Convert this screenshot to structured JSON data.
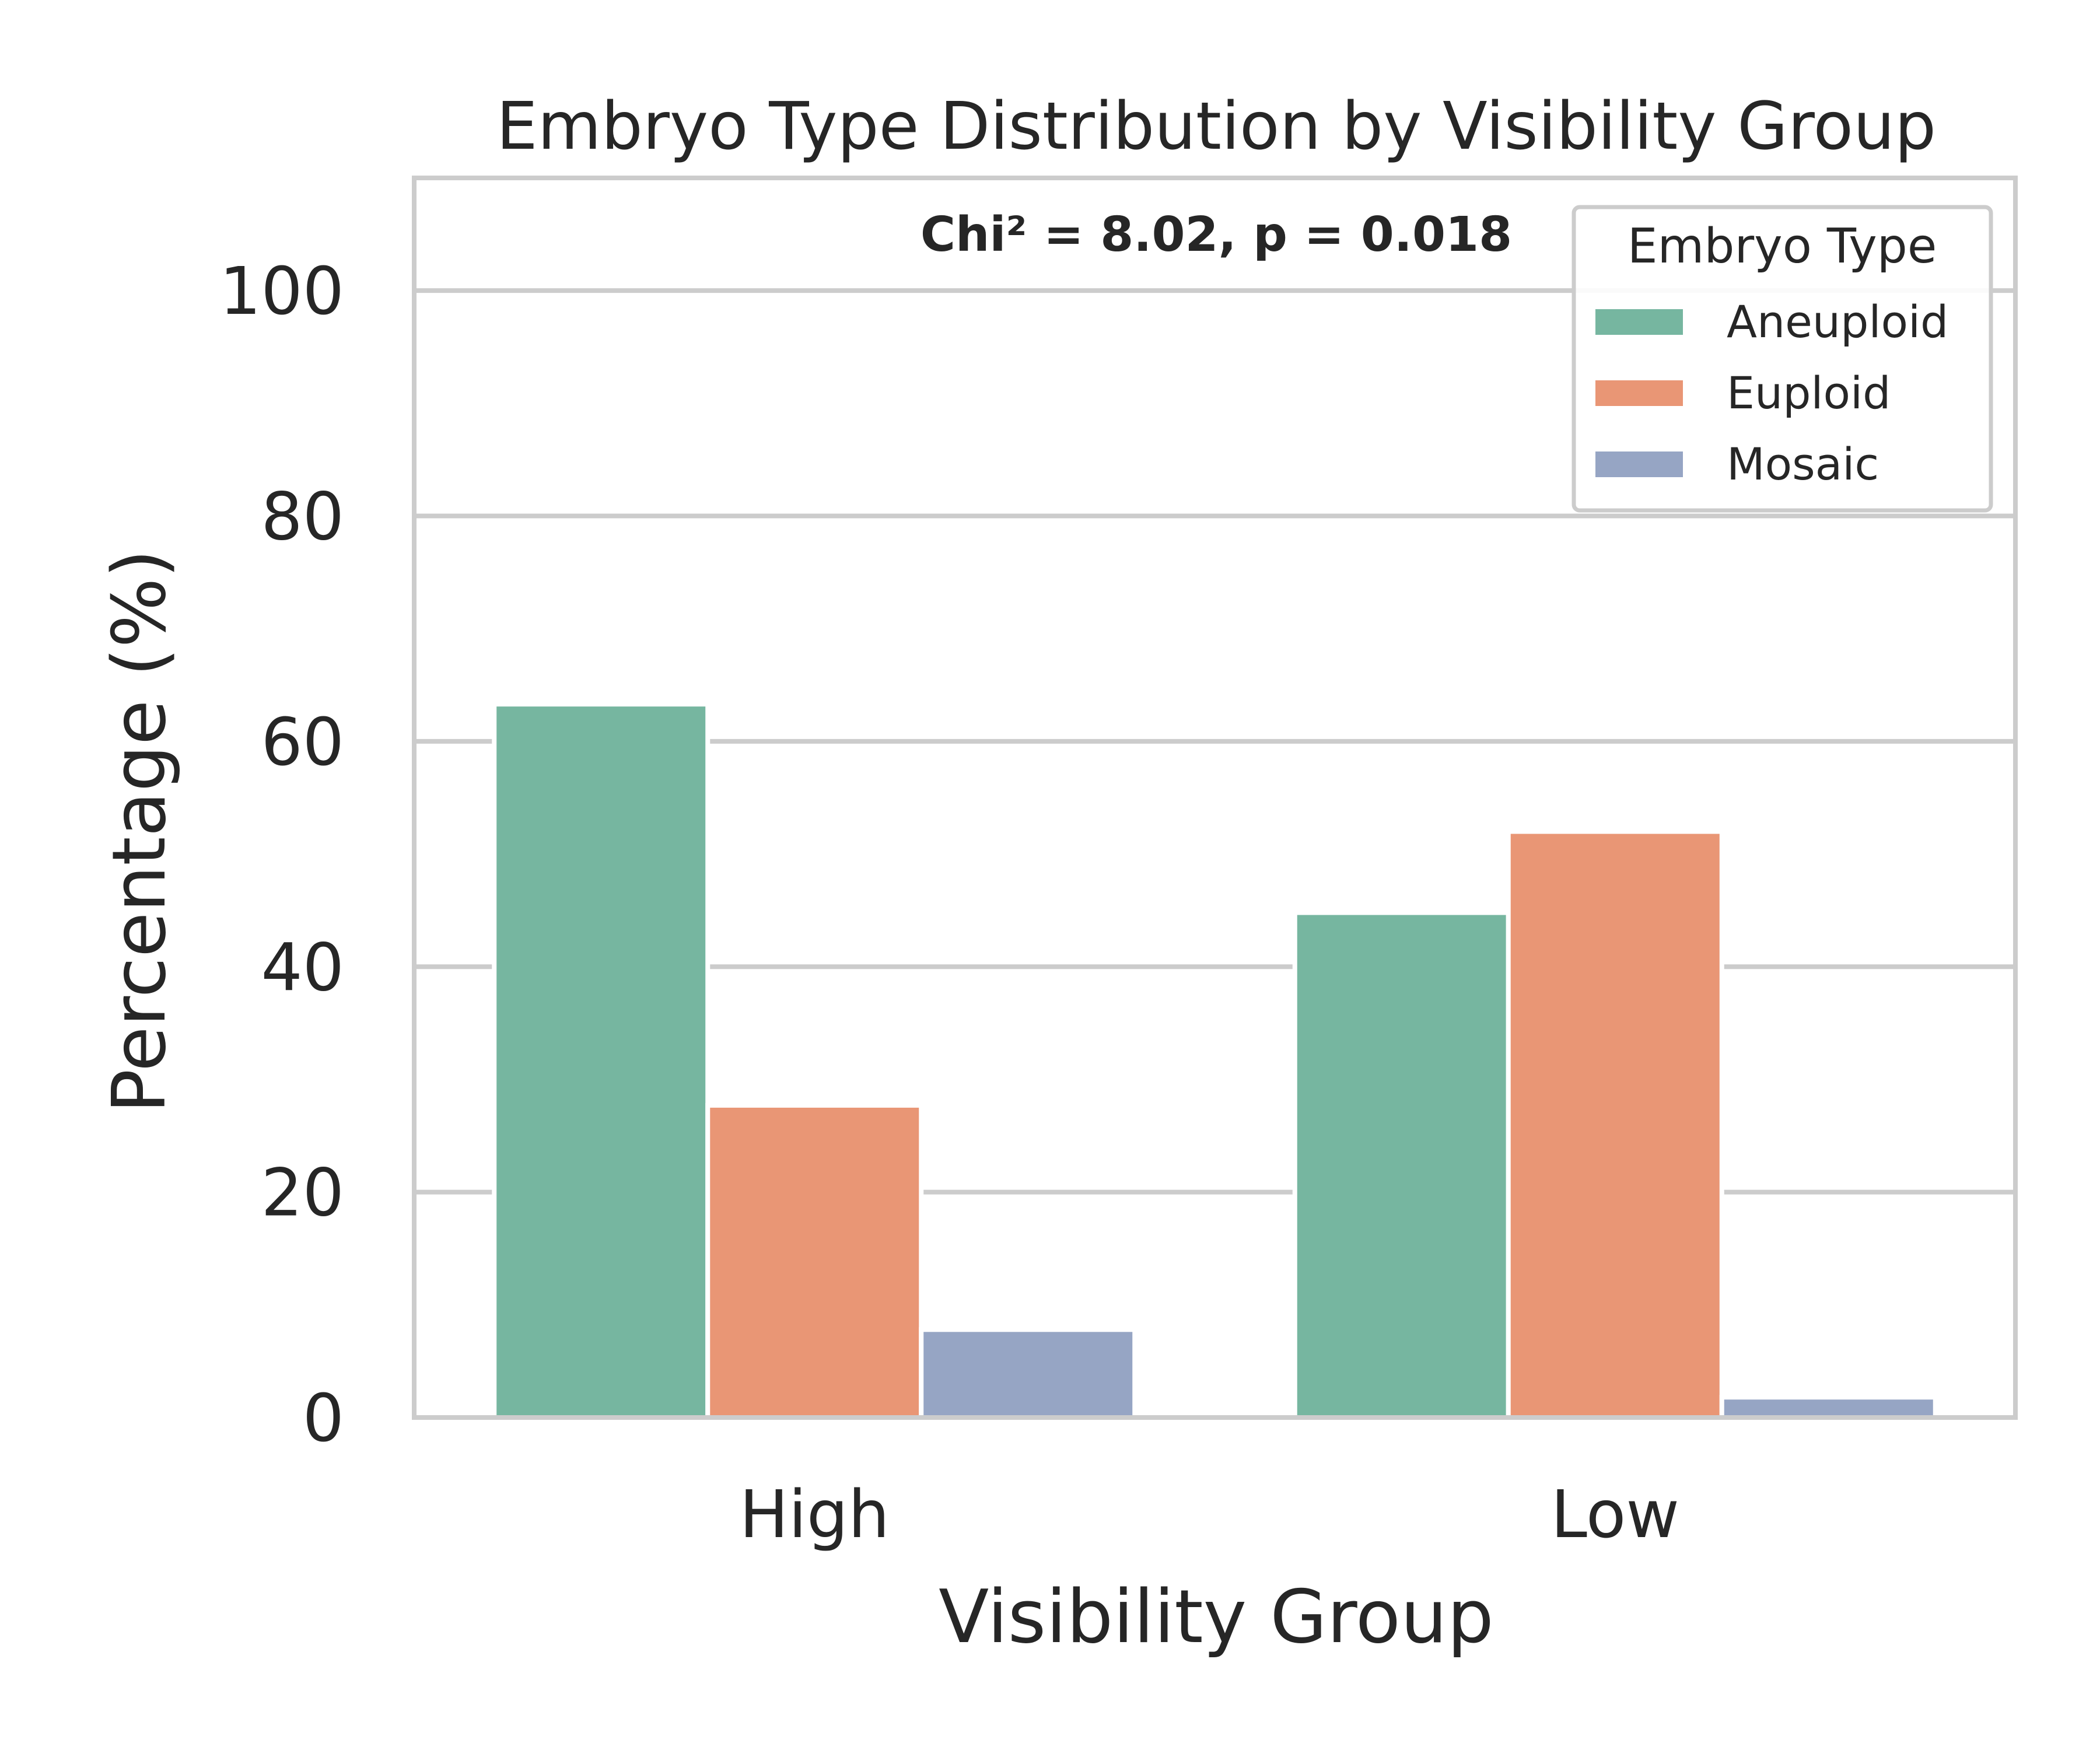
{
  "chart_data": {
    "type": "bar",
    "title": "Embryo Type Distribution by Visibility Group",
    "xlabel": "Visibility Group",
    "ylabel": "Percentage (%)",
    "categories": [
      "High",
      "Low"
    ],
    "ylim": [
      0,
      110
    ],
    "yticks": [
      0,
      20,
      40,
      60,
      80,
      100
    ],
    "grid": true,
    "legend": {
      "title": "Embryo Type",
      "placement": "top-right"
    },
    "annotation": "Chi² = 8.02, p = 0.018",
    "series": [
      {
        "name": "Aneuploid",
        "color": "#76b6a0",
        "values": [
          63.3,
          44.8
        ]
      },
      {
        "name": "Euploid",
        "color": "#e99675",
        "values": [
          27.7,
          52.0
        ]
      },
      {
        "name": "Mosaic",
        "color": "#96a5c4",
        "values": [
          7.8,
          1.8
        ]
      }
    ]
  }
}
